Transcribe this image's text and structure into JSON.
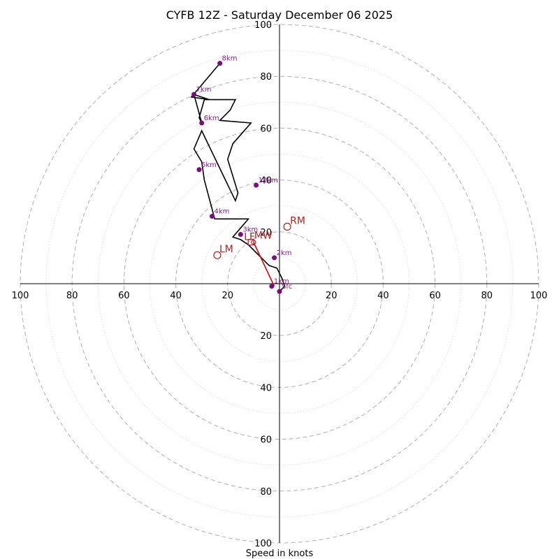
{
  "chart_data": {
    "type": "line",
    "subtype": "hodograph",
    "title": "CYFB 12Z - Saturday December 06 2025",
    "xlabel": "Speed in knots",
    "speed_max": 100,
    "major_rings": [
      20,
      40,
      60,
      80,
      100
    ],
    "minor_rings": [
      10,
      30,
      50,
      70,
      90
    ],
    "axis_ticks": {
      "x_left": [
        "100",
        "80",
        "60",
        "40",
        "20"
      ],
      "x_right": [
        "20",
        "40",
        "60",
        "80",
        "100"
      ],
      "y_top": [
        "20",
        "40",
        "60",
        "80",
        "100"
      ],
      "y_bottom": [
        "20",
        "40",
        "60",
        "80",
        "100"
      ]
    },
    "hodograph": {
      "u": [
        0,
        2,
        1,
        -1,
        -4,
        -6,
        -9,
        -12,
        -15,
        -18,
        -12,
        -25,
        -29,
        -30,
        -33,
        -30,
        -17,
        -16,
        -20,
        -18,
        -11,
        -23,
        -19,
        -17,
        -29,
        -31,
        -30,
        -33,
        -27,
        -34,
        -23
      ],
      "v": [
        -3,
        -1,
        2,
        6,
        7,
        9,
        12,
        15,
        17,
        18,
        25,
        25,
        40,
        47,
        52,
        59,
        32,
        35,
        48,
        54,
        62,
        63,
        67,
        71,
        71,
        64,
        62,
        73,
        71,
        72,
        85
      ]
    },
    "height_labels": [
      {
        "label": "Sfc",
        "u": 0,
        "v": -3
      },
      {
        "label": "1km",
        "u": -3,
        "v": -1
      },
      {
        "label": "2km",
        "u": -2,
        "v": 10
      },
      {
        "label": "3km",
        "u": -15,
        "v": 19
      },
      {
        "label": "4km",
        "u": -26,
        "v": 26
      },
      {
        "label": "5km",
        "u": -31,
        "v": 44
      },
      {
        "label": "6km",
        "u": -30,
        "v": 62
      },
      {
        "label": "7km",
        "u": -33,
        "v": 73
      },
      {
        "label": "8km",
        "u": -23,
        "v": 85
      },
      {
        "label": "12km",
        "u": -9,
        "v": 38
      }
    ],
    "shear_vector": {
      "from": {
        "u": -2,
        "v": -1
      },
      "to": {
        "u": -10,
        "v": 16
      }
    },
    "motions": [
      {
        "label": "RM",
        "u": 3,
        "v": 22
      },
      {
        "label": "LM",
        "u": -24,
        "v": 11
      },
      {
        "label": "MW",
        "u": -10,
        "v": 16
      },
      {
        "label": "LF",
        "u": -11,
        "v": 16
      }
    ]
  }
}
